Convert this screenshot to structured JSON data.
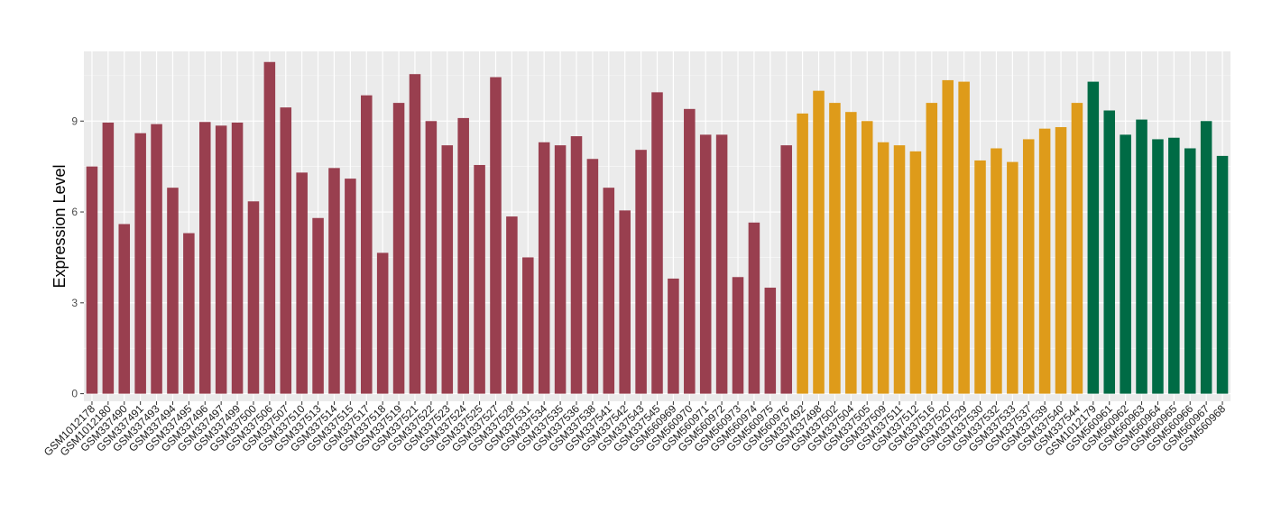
{
  "chart_data": {
    "type": "bar",
    "title": "",
    "xlabel": "",
    "ylabel": "Expression Level",
    "ylim": [
      -0.25,
      11.3
    ],
    "yticks": [
      0,
      3,
      6,
      9
    ],
    "grid": true,
    "legend": "none",
    "panel_background": "#ebebeb",
    "grid_color": "#ffffff",
    "group_colors": {
      "group1": "#993F4F",
      "group2": "#DE9B1A",
      "group3": "#006B45"
    },
    "categories": [
      "GSM1012178",
      "GSM1012180",
      "GSM337490",
      "GSM337491",
      "GSM337493",
      "GSM337494",
      "GSM337495",
      "GSM337496",
      "GSM337497",
      "GSM337499",
      "GSM337500",
      "GSM337506",
      "GSM337507",
      "GSM337510",
      "GSM337513",
      "GSM337514",
      "GSM337515",
      "GSM337517",
      "GSM337518",
      "GSM337519",
      "GSM337521",
      "GSM337522",
      "GSM337523",
      "GSM337524",
      "GSM337525",
      "GSM337527",
      "GSM337528",
      "GSM337531",
      "GSM337534",
      "GSM337535",
      "GSM337536",
      "GSM337538",
      "GSM337541",
      "GSM337542",
      "GSM337543",
      "GSM337545",
      "GSM560969",
      "GSM560970",
      "GSM560971",
      "GSM560972",
      "GSM560973",
      "GSM560974",
      "GSM560975",
      "GSM560976",
      "GSM337492",
      "GSM337498",
      "GSM337502",
      "GSM337504",
      "GSM337505",
      "GSM337509",
      "GSM337511",
      "GSM337512",
      "GSM337516",
      "GSM337520",
      "GSM337529",
      "GSM337530",
      "GSM337532",
      "GSM337533",
      "GSM337537",
      "GSM337539",
      "GSM337540",
      "GSM337544",
      "GSM1012179",
      "GSM560961",
      "GSM560962",
      "GSM560963",
      "GSM560964",
      "GSM560965",
      "GSM560966",
      "GSM560967",
      "GSM560968"
    ],
    "values": [
      7.5,
      8.95,
      5.6,
      8.6,
      8.9,
      6.8,
      5.3,
      8.97,
      8.85,
      8.95,
      6.35,
      10.95,
      9.45,
      7.3,
      5.8,
      7.45,
      7.1,
      9.85,
      4.65,
      9.6,
      10.55,
      9.0,
      8.2,
      9.1,
      7.55,
      10.45,
      5.85,
      4.5,
      8.3,
      8.2,
      8.5,
      7.75,
      6.8,
      6.05,
      8.05,
      9.95,
      3.8,
      9.4,
      8.55,
      8.55,
      3.85,
      5.65,
      3.5,
      8.2,
      9.25,
      10.0,
      9.6,
      9.3,
      9.0,
      8.3,
      8.2,
      8.0,
      9.6,
      10.35,
      10.3,
      7.7,
      8.1,
      7.65,
      8.4,
      8.75,
      8.8,
      9.6,
      10.3,
      9.35,
      8.55,
      9.05,
      8.4,
      8.45,
      8.1,
      9.0,
      7.85
    ],
    "groups": [
      "group1",
      "group1",
      "group1",
      "group1",
      "group1",
      "group1",
      "group1",
      "group1",
      "group1",
      "group1",
      "group1",
      "group1",
      "group1",
      "group1",
      "group1",
      "group1",
      "group1",
      "group1",
      "group1",
      "group1",
      "group1",
      "group1",
      "group1",
      "group1",
      "group1",
      "group1",
      "group1",
      "group1",
      "group1",
      "group1",
      "group1",
      "group1",
      "group1",
      "group1",
      "group1",
      "group1",
      "group1",
      "group1",
      "group1",
      "group1",
      "group1",
      "group1",
      "group1",
      "group1",
      "group2",
      "group2",
      "group2",
      "group2",
      "group2",
      "group2",
      "group2",
      "group2",
      "group2",
      "group2",
      "group2",
      "group2",
      "group2",
      "group2",
      "group2",
      "group2",
      "group2",
      "group2",
      "group3",
      "group3",
      "group3",
      "group3",
      "group3",
      "group3",
      "group3",
      "group3",
      "group3"
    ]
  }
}
